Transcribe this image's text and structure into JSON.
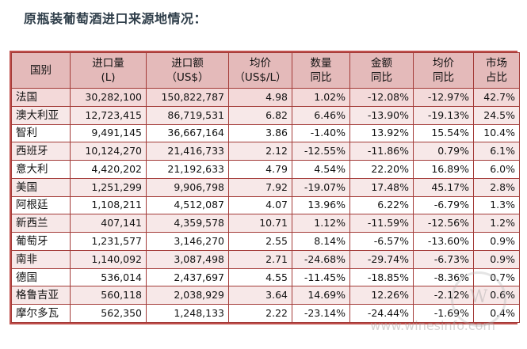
{
  "title": "原瓶装葡萄酒进口来源地情况：",
  "headers": [
    [
      "国别",
      ""
    ],
    [
      "进口量",
      "(L)"
    ],
    [
      "进口额",
      "（US$）"
    ],
    [
      "均价",
      "（US$/L）"
    ],
    [
      "数量",
      "同比"
    ],
    [
      "金额",
      "同比"
    ],
    [
      "均价",
      "同比"
    ],
    [
      "市场",
      "占比"
    ]
  ],
  "rows": [
    [
      "法国",
      "30,282,100",
      "150,822,787",
      "4.98",
      "1.02%",
      "-12.08%",
      "-12.97%",
      "42.7%"
    ],
    [
      "澳大利亚",
      "12,723,415",
      "86,719,531",
      "6.82",
      "6.46%",
      "-13.90%",
      "-19.13%",
      "24.5%"
    ],
    [
      "智利",
      "9,491,145",
      "36,667,164",
      "3.86",
      "-1.40%",
      "13.92%",
      "15.54%",
      "10.4%"
    ],
    [
      "西班牙",
      "10,124,270",
      "21,416,733",
      "2.12",
      "-12.55%",
      "-11.86%",
      "0.79%",
      "6.1%"
    ],
    [
      "意大利",
      "4,420,202",
      "21,192,633",
      "4.79",
      "4.54%",
      "22.20%",
      "16.89%",
      "6.0%"
    ],
    [
      "美国",
      "1,251,299",
      "9,906,798",
      "7.92",
      "-19.07%",
      "17.48%",
      "45.17%",
      "2.8%"
    ],
    [
      "阿根廷",
      "1,108,211",
      "4,512,087",
      "4.07",
      "13.96%",
      "6.22%",
      "-6.79%",
      "1.3%"
    ],
    [
      "新西兰",
      "407,141",
      "4,359,578",
      "10.71",
      "1.12%",
      "-11.59%",
      "-12.56%",
      "1.2%"
    ],
    [
      "葡萄牙",
      "1,231,577",
      "3,146,270",
      "2.55",
      "8.14%",
      "-6.57%",
      "-13.60%",
      "0.9%"
    ],
    [
      "南非",
      "1,140,092",
      "3,087,498",
      "2.71",
      "-24.68%",
      "-29.74%",
      "-6.73%",
      "0.9%"
    ],
    [
      "德国",
      "536,014",
      "2,437,697",
      "4.55",
      "-11.45%",
      "-18.85%",
      "-8.36%",
      "0.7%"
    ],
    [
      "格鲁吉亚",
      "560,118",
      "2,038,929",
      "3.64",
      "14.69%",
      "12.26%",
      "-2.12%",
      "0.6%"
    ],
    [
      "摩尔多瓦",
      "562,350",
      "1,248,133",
      "2.22",
      "-23.14%",
      "-24.44%",
      "-1.69%",
      "0.4%"
    ]
  ],
  "watermark": {
    "logo_text": "W",
    "url": "www.winesinfo.com"
  },
  "colors": {
    "border": "#c0504d",
    "header_bg": "#e4baba",
    "stripe_bg": "#f7e8e8"
  }
}
